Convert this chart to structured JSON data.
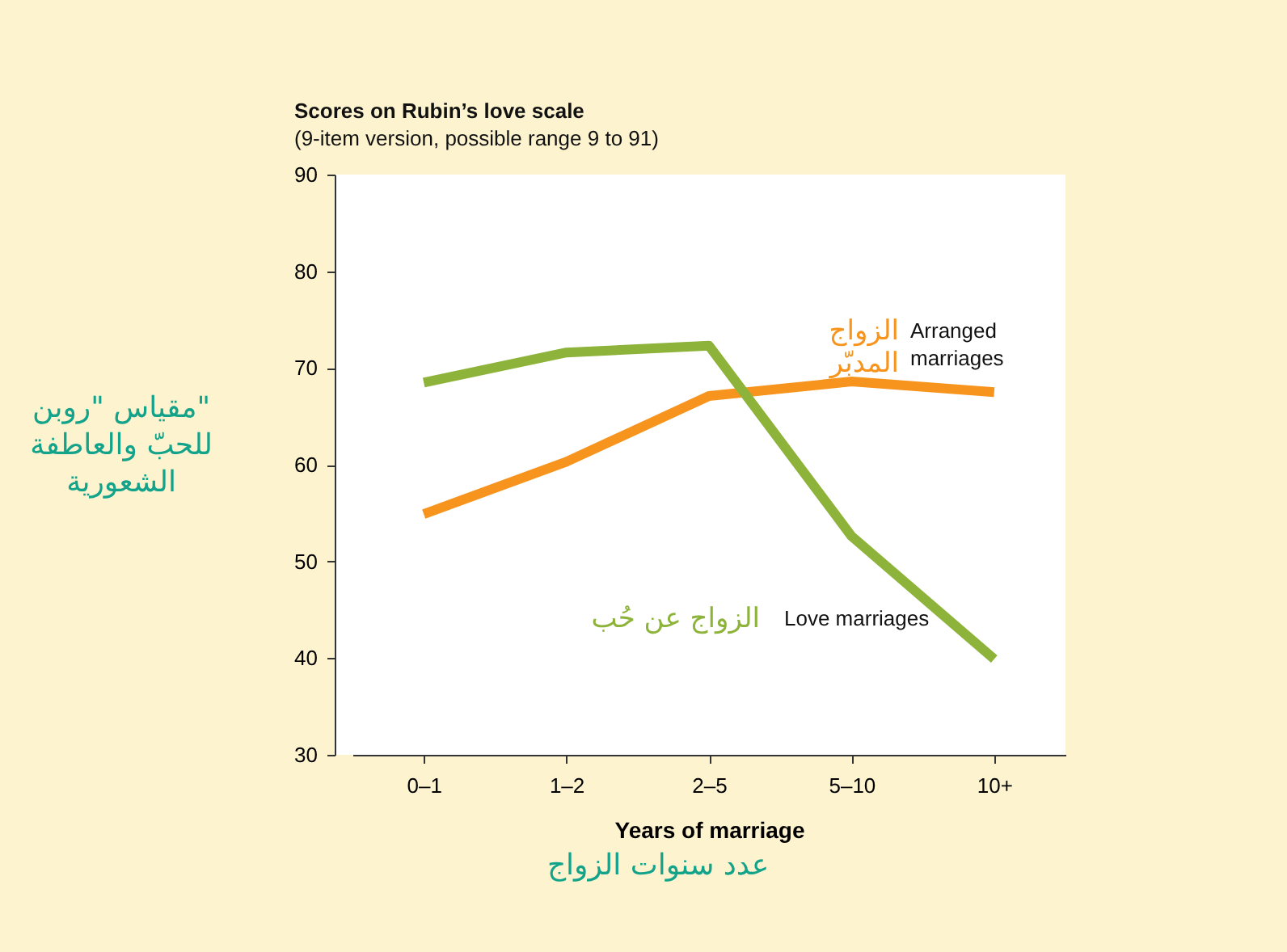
{
  "chart_data": {
    "type": "line",
    "title": "Scores on Rubin’s love scale",
    "subtitle": "(9-item version, possible range 9 to 91)",
    "xlabel": "Years of marriage",
    "ylabel": "مقياس \"روبن\" للحبّ والعاطفة الشعورية",
    "categories": [
      "0–1",
      "1–2",
      "2–5",
      "5–10",
      "10+"
    ],
    "series": [
      {
        "name": "Arranged marriages",
        "color": "#f7941d",
        "values": [
          54.9,
          60.3,
          67.1,
          68.6,
          67.5
        ]
      },
      {
        "name": "Love marriages",
        "color": "#8db33a",
        "values": [
          68.5,
          71.6,
          72.3,
          52.6,
          39.9
        ]
      }
    ],
    "annotations": [
      "الزواج المدبّر",
      "الزواج عن حُب",
      "عدد سنوات الزواج"
    ],
    "ylim": [
      30,
      90
    ],
    "yticks": [
      30,
      40,
      50,
      60,
      70,
      80,
      90
    ],
    "grid": false,
    "legend": false,
    "marker": "none",
    "line_style": "solid"
  }
}
